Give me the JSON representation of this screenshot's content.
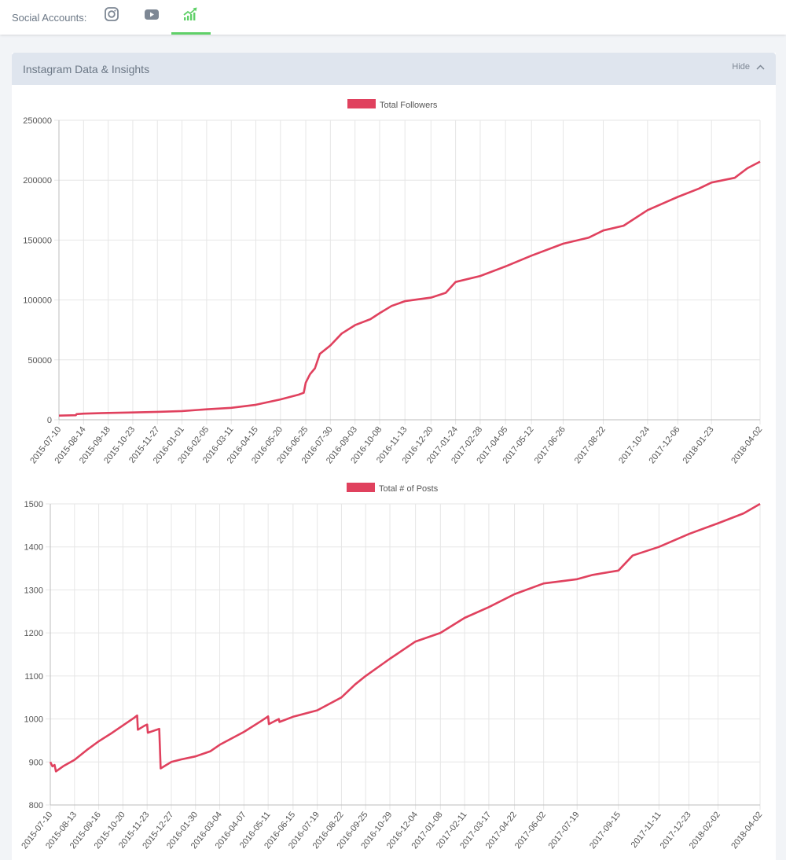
{
  "topbar": {
    "label": "Social Accounts:",
    "tabs": [
      {
        "icon": "instagram-icon",
        "active": false
      },
      {
        "icon": "youtube-icon",
        "active": false
      },
      {
        "icon": "growth-chart-icon",
        "active": true
      }
    ],
    "accent_color": "#5fd068"
  },
  "panel": {
    "title": "Instagram Data & Insights",
    "hide_label": "Hide"
  },
  "colors": {
    "series": "#e0415e",
    "grid": "#e6e6e6"
  },
  "chart_data": [
    {
      "type": "line",
      "title": "",
      "legend": "top",
      "series": [
        {
          "name": "Total Followers",
          "points": [
            [
              "2015-07-10",
              3500
            ],
            [
              "2015-08-03",
              3800
            ],
            [
              "2015-08-04",
              4700
            ],
            [
              "2015-08-14",
              5100
            ],
            [
              "2015-09-18",
              5700
            ],
            [
              "2015-10-23",
              6100
            ],
            [
              "2015-11-27",
              6600
            ],
            [
              "2016-01-01",
              7300
            ],
            [
              "2016-02-05",
              8700
            ],
            [
              "2016-03-11",
              10000
            ],
            [
              "2016-04-15",
              12500
            ],
            [
              "2016-05-20",
              17000
            ],
            [
              "2016-06-15",
              21000
            ],
            [
              "2016-06-22",
              22500
            ],
            [
              "2016-06-25",
              31000
            ],
            [
              "2016-07-01",
              38000
            ],
            [
              "2016-07-08",
              43000
            ],
            [
              "2016-07-15",
              55000
            ],
            [
              "2016-07-30",
              62000
            ],
            [
              "2016-08-15",
              72000
            ],
            [
              "2016-09-03",
              79000
            ],
            [
              "2016-09-25",
              84000
            ],
            [
              "2016-10-08",
              89000
            ],
            [
              "2016-10-25",
              95000
            ],
            [
              "2016-11-13",
              99000
            ],
            [
              "2016-12-20",
              102000
            ],
            [
              "2017-01-10",
              106000
            ],
            [
              "2017-01-24",
              115000
            ],
            [
              "2017-02-28",
              120000
            ],
            [
              "2017-04-05",
              128000
            ],
            [
              "2017-05-12",
              137000
            ],
            [
              "2017-06-26",
              147000
            ],
            [
              "2017-08-01",
              152000
            ],
            [
              "2017-08-22",
              158000
            ],
            [
              "2017-09-20",
              162000
            ],
            [
              "2017-10-24",
              175000
            ],
            [
              "2017-12-06",
              186000
            ],
            [
              "2018-01-05",
              193000
            ],
            [
              "2018-01-23",
              198000
            ],
            [
              "2018-02-25",
              202000
            ],
            [
              "2018-03-15",
              210000
            ],
            [
              "2018-04-02",
              215500
            ]
          ]
        }
      ],
      "x_ticks": [
        "2015-07-10",
        "2015-08-14",
        "2015-09-18",
        "2015-10-23",
        "2015-11-27",
        "2016-01-01",
        "2016-02-05",
        "2016-03-11",
        "2016-04-15",
        "2016-05-20",
        "2016-06-25",
        "2016-07-30",
        "2016-09-03",
        "2016-10-08",
        "2016-11-13",
        "2016-12-20",
        "2017-01-24",
        "2017-02-28",
        "2017-04-05",
        "2017-05-12",
        "2017-06-26",
        "2017-08-22",
        "2017-10-24",
        "2017-12-06",
        "2018-01-23",
        "2018-04-02"
      ],
      "y_ticks": [
        "250000",
        "200000",
        "150000",
        "100000",
        "50000",
        "0"
      ],
      "ylim": [
        0,
        250000
      ],
      "grid": true
    },
    {
      "type": "line",
      "title": "",
      "legend": "top",
      "series": [
        {
          "name": "Total # of Posts",
          "points": [
            [
              "2015-07-10",
              900
            ],
            [
              "2015-07-13",
              890
            ],
            [
              "2015-07-16",
              893
            ],
            [
              "2015-07-18",
              878
            ],
            [
              "2015-07-28",
              890
            ],
            [
              "2015-08-13",
              905
            ],
            [
              "2015-09-01",
              930
            ],
            [
              "2015-09-16",
              948
            ],
            [
              "2015-10-05",
              968
            ],
            [
              "2015-10-20",
              985
            ],
            [
              "2015-11-05",
              1003
            ],
            [
              "2015-11-09",
              1008
            ],
            [
              "2015-11-10",
              975
            ],
            [
              "2015-11-19",
              984
            ],
            [
              "2015-11-23",
              987
            ],
            [
              "2015-11-24",
              968
            ],
            [
              "2015-12-10",
              977
            ],
            [
              "2015-12-12",
              885
            ],
            [
              "2015-12-27",
              900
            ],
            [
              "2016-01-10",
              906
            ],
            [
              "2016-01-30",
              913
            ],
            [
              "2016-02-20",
              925
            ],
            [
              "2016-03-04",
              940
            ],
            [
              "2016-04-07",
              970
            ],
            [
              "2016-05-01",
              995
            ],
            [
              "2016-05-11",
              1006
            ],
            [
              "2016-05-12",
              988
            ],
            [
              "2016-05-26",
              1000
            ],
            [
              "2016-05-27",
              993
            ],
            [
              "2016-06-15",
              1005
            ],
            [
              "2016-07-19",
              1020
            ],
            [
              "2016-08-22",
              1050
            ],
            [
              "2016-09-10",
              1080
            ],
            [
              "2016-09-25",
              1100
            ],
            [
              "2016-10-29",
              1140
            ],
            [
              "2016-12-04",
              1180
            ],
            [
              "2017-01-08",
              1200
            ],
            [
              "2017-02-11",
              1235
            ],
            [
              "2017-03-17",
              1260
            ],
            [
              "2017-04-22",
              1290
            ],
            [
              "2017-06-02",
              1315
            ],
            [
              "2017-07-19",
              1325
            ],
            [
              "2017-08-10",
              1335
            ],
            [
              "2017-09-15",
              1345
            ],
            [
              "2017-10-05",
              1380
            ],
            [
              "2017-11-11",
              1400
            ],
            [
              "2017-12-23",
              1430
            ],
            [
              "2018-02-02",
              1455
            ],
            [
              "2018-03-10",
              1478
            ],
            [
              "2018-04-02",
              1500
            ]
          ]
        }
      ],
      "x_ticks": [
        "2015-07-10",
        "2015-08-13",
        "2015-09-16",
        "2015-10-20",
        "2015-11-23",
        "2015-12-27",
        "2016-01-30",
        "2016-03-04",
        "2016-04-07",
        "2016-05-11",
        "2016-06-15",
        "2016-07-19",
        "2016-08-22",
        "2016-09-25",
        "2016-10-29",
        "2016-12-04",
        "2017-01-08",
        "2017-02-11",
        "2017-03-17",
        "2017-04-22",
        "2017-06-02",
        "2017-07-19",
        "2017-09-15",
        "2017-11-11",
        "2017-12-23",
        "2018-02-02",
        "2018-04-02"
      ],
      "y_ticks": [
        "1500",
        "1400",
        "1300",
        "1200",
        "1100",
        "1000",
        "900",
        "800"
      ],
      "ylim": [
        800,
        1500
      ],
      "grid": true
    }
  ]
}
